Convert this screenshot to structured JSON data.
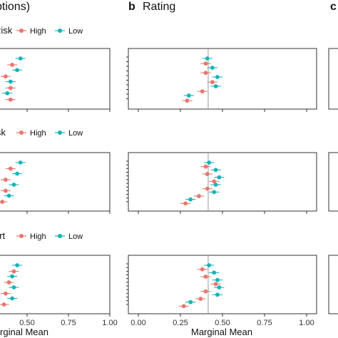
{
  "figure": {
    "panel_a_title_fragment": "ptions)",
    "panel_b_letter": "b",
    "panel_b_title": "Rating",
    "panel_c_letter": "c",
    "xlabel_left_fragment": "Marginal Mean",
    "xlabel_center": "Marginal Mean"
  },
  "legend_titles": [
    "Risk",
    "isk",
    "ort"
  ],
  "legend_labels": {
    "high": "High",
    "low": "Low"
  },
  "colors": {
    "high": "#E8776E",
    "low": "#16B4B8",
    "axis": "#333333",
    "ref_line": "#9a9a9a"
  },
  "chart_data": [
    {
      "type": "scatter",
      "panel": "a",
      "xlim": [
        0,
        1
      ],
      "ticks": [
        0.5,
        0.75,
        1.0
      ],
      "tick_labels": [
        "0.50",
        "0.75",
        "1.00"
      ],
      "xlabel": "Marginal Mean",
      "facets": [
        {
          "legend_title": "Risk",
          "series": [
            {
              "name": "High",
              "values": [
                0.41,
                0.37,
                0.4,
                0.4
              ]
            },
            {
              "name": "Low",
              "values": [
                0.46,
                0.44,
                0.4,
                0.38
              ]
            }
          ]
        },
        {
          "legend_title": "isk",
          "series": [
            {
              "name": "High",
              "values": [
                0.4,
                0.37,
                0.37,
                0.35
              ]
            },
            {
              "name": "Low",
              "values": [
                0.46,
                0.44,
                0.42,
                0.39
              ]
            }
          ]
        },
        {
          "legend_title": "ort",
          "series": [
            {
              "name": "High",
              "values": [
                0.42,
                0.39,
                0.37,
                0.36
              ]
            },
            {
              "name": "Low",
              "values": [
                0.44,
                0.41,
                0.42,
                0.41
              ]
            }
          ]
        }
      ]
    },
    {
      "type": "scatter",
      "panel": "b",
      "title": "Rating",
      "xlim": [
        0,
        1
      ],
      "ticks": [
        0.0,
        0.25,
        0.5,
        0.75,
        1.0
      ],
      "tick_labels": [
        "0.00",
        "0.25",
        "0.50",
        "0.75",
        "1.00"
      ],
      "xlabel": "Marginal Mean",
      "reference_line": 0.415,
      "facets": [
        {
          "legend_title": "Risk",
          "series": [
            {
              "name": "High",
              "values": [
                0.4,
                0.4,
                0.44,
                0.38,
                0.29
              ]
            },
            {
              "name": "Low",
              "values": [
                0.41,
                0.44,
                0.47,
                0.46,
                0.3
              ]
            }
          ]
        },
        {
          "legend_title": "isk",
          "series": [
            {
              "name": "High",
              "values": [
                0.4,
                0.41,
                0.45,
                0.41,
                0.36,
                0.28
              ]
            },
            {
              "name": "Low",
              "values": [
                0.42,
                0.46,
                0.48,
                0.46,
                0.45,
                0.31
              ]
            }
          ]
        },
        {
          "legend_title": "ort",
          "series": [
            {
              "name": "High",
              "values": [
                0.38,
                0.4,
                0.46,
                0.4,
                0.37,
                0.27
              ]
            },
            {
              "name": "Low",
              "values": [
                0.42,
                0.45,
                0.47,
                0.48,
                0.47,
                0.31
              ]
            }
          ]
        }
      ]
    }
  ]
}
